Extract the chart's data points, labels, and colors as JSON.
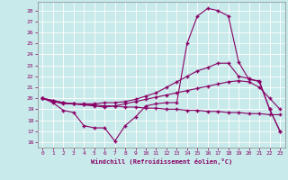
{
  "xlabel": "Windchill (Refroidissement éolien,°C)",
  "background_color": "#c8eaea",
  "grid_color": "#aacccc",
  "line_color": "#880066",
  "xlim": [
    -0.5,
    23.5
  ],
  "ylim": [
    15.5,
    28.8
  ],
  "xticks": [
    0,
    1,
    2,
    3,
    4,
    5,
    6,
    7,
    8,
    9,
    10,
    11,
    12,
    13,
    14,
    15,
    16,
    17,
    18,
    19,
    20,
    21,
    22,
    23
  ],
  "yticks": [
    16,
    17,
    18,
    19,
    20,
    21,
    22,
    23,
    24,
    25,
    26,
    27,
    28
  ],
  "line1_x": [
    0,
    1,
    2,
    3,
    4,
    5,
    6,
    7,
    8,
    9,
    10,
    11,
    12,
    13,
    14,
    15,
    16,
    17,
    18,
    19,
    20,
    21,
    22,
    23
  ],
  "line1_y": [
    20.0,
    19.8,
    19.6,
    19.5,
    19.4,
    19.4,
    19.3,
    19.3,
    19.2,
    19.2,
    19.1,
    19.1,
    19.0,
    19.0,
    18.9,
    18.9,
    18.8,
    18.8,
    18.7,
    18.7,
    18.6,
    18.6,
    18.5,
    18.5
  ],
  "line2_x": [
    0,
    1,
    2,
    3,
    4,
    5,
    6,
    7,
    8,
    9,
    10,
    11,
    12,
    13,
    14,
    15,
    16,
    17,
    18,
    19,
    20,
    21,
    22,
    23
  ],
  "line2_y": [
    20.0,
    19.7,
    19.5,
    19.5,
    19.4,
    19.3,
    19.2,
    19.3,
    19.5,
    19.7,
    19.9,
    20.1,
    20.3,
    20.5,
    20.7,
    20.9,
    21.1,
    21.3,
    21.5,
    21.6,
    21.5,
    21.0,
    20.0,
    19.0
  ],
  "line3_x": [
    0,
    1,
    2,
    3,
    4,
    5,
    6,
    7,
    8,
    9,
    10,
    11,
    12,
    13,
    14,
    15,
    16,
    17,
    18,
    19,
    20,
    21,
    22,
    23
  ],
  "line3_y": [
    20.0,
    19.8,
    19.6,
    19.5,
    19.5,
    19.5,
    19.6,
    19.6,
    19.7,
    19.9,
    20.2,
    20.5,
    21.0,
    21.5,
    22.0,
    22.5,
    22.8,
    23.2,
    23.2,
    22.0,
    21.8,
    21.5,
    19.0,
    17.0
  ],
  "line4_x": [
    0,
    1,
    2,
    3,
    4,
    5,
    6,
    7,
    8,
    9,
    10,
    11,
    12,
    13,
    14,
    15,
    16,
    17,
    18,
    19,
    20,
    21,
    22,
    23
  ],
  "line4_y": [
    20.0,
    19.6,
    18.9,
    18.7,
    17.5,
    17.3,
    17.3,
    16.1,
    17.5,
    18.3,
    19.3,
    19.5,
    19.6,
    19.6,
    25.0,
    27.5,
    28.2,
    28.0,
    27.5,
    23.3,
    21.7,
    21.6,
    19.0,
    17.0
  ],
  "marker": "+",
  "markersize": 3.5,
  "linewidth": 0.8
}
